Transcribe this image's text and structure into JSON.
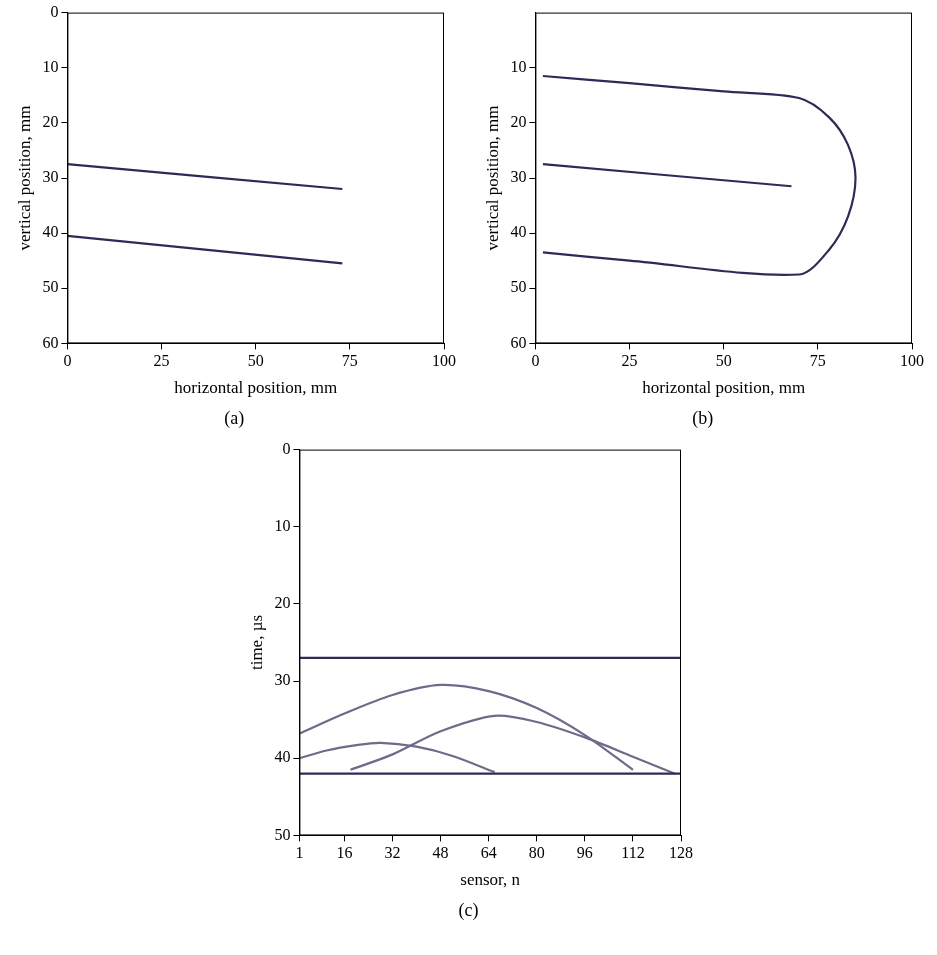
{
  "chart_data": [
    {
      "type": "line",
      "panel_label": "(a)",
      "x_label": "horizontal position, mm",
      "y_label": "vertical position, mm",
      "xlim": [
        0,
        100
      ],
      "xticks": [
        0,
        25,
        50,
        75,
        100
      ],
      "ylim": [
        60,
        0
      ],
      "yticks": [
        0,
        10,
        20,
        30,
        40,
        50,
        60
      ],
      "grid": false,
      "series": [
        {
          "color": "#2e2a55",
          "x": [
            0,
            73
          ],
          "values": [
            27.5,
            32
          ]
        },
        {
          "color": "#2e2a55",
          "x": [
            0,
            73
          ],
          "values": [
            40.5,
            45.5
          ]
        }
      ]
    },
    {
      "type": "line",
      "panel_label": "(b)",
      "x_label": "horizontal position, mm",
      "y_label": "vertical position, mm",
      "xlim": [
        0,
        100
      ],
      "xticks": [
        0,
        25,
        50,
        75,
        100
      ],
      "ylim": [
        60,
        0
      ],
      "yticks": [
        10,
        20,
        30,
        40,
        50,
        60
      ],
      "grid": false,
      "series": [
        {
          "color": "#2e2a55",
          "x": [
            2,
            25,
            50,
            70,
            78,
            83,
            85,
            83,
            78,
            70,
            25,
            2
          ],
          "values": [
            11.5,
            12.8,
            14.3,
            15.5,
            19,
            24,
            30,
            37,
            43,
            47.5,
            45,
            43.5
          ]
        },
        {
          "color": "#2e2a55",
          "x": [
            2,
            68
          ],
          "values": [
            27.5,
            31.5
          ]
        }
      ]
    },
    {
      "type": "line",
      "panel_label": "(c)",
      "x_label": "sensor, n",
      "y_label": "time, µs",
      "xlim": [
        1,
        128
      ],
      "xticks": [
        1,
        16,
        32,
        48,
        64,
        80,
        96,
        112,
        128
      ],
      "ylim": [
        50,
        0
      ],
      "yticks": [
        0,
        10,
        20,
        30,
        40,
        50
      ],
      "grid": false,
      "series": [
        {
          "color": "#2e2a55",
          "x": [
            1,
            128
          ],
          "values": [
            27,
            27
          ]
        },
        {
          "color": "#2e2a55",
          "x": [
            1,
            128
          ],
          "values": [
            42,
            42
          ]
        },
        {
          "color": "#6e6a8a",
          "x": [
            1,
            16,
            32,
            48,
            64,
            80,
            96,
            112
          ],
          "values": [
            36.8,
            34.2,
            31.8,
            30.5,
            31.3,
            33.5,
            37,
            41.5
          ]
        },
        {
          "color": "#6e6a8a",
          "x": [
            18,
            32,
            48,
            66,
            80,
            96,
            112,
            126
          ],
          "values": [
            41.5,
            39.5,
            36.5,
            34.5,
            35.3,
            37.3,
            39.8,
            42
          ]
        },
        {
          "color": "#6e6a8a",
          "x": [
            1,
            10,
            20,
            28,
            40,
            52,
            66
          ],
          "values": [
            40,
            39,
            38.3,
            38,
            38.5,
            39.7,
            41.8
          ]
        }
      ]
    }
  ]
}
